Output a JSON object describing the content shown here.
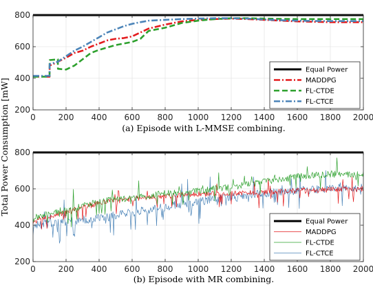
{
  "ylabel": "Total Power Consumption [mW]",
  "chart_data": [
    {
      "type": "line",
      "caption": "(a) Episode with L-MMSE combining.",
      "xlim": [
        0,
        2000
      ],
      "ylim": [
        200,
        800
      ],
      "xticks": [
        0,
        200,
        400,
        600,
        800,
        1000,
        1200,
        1400,
        1600,
        1800,
        2000
      ],
      "yticks": [
        200,
        400,
        600,
        800
      ],
      "grid": true,
      "legend_position": "bottom-right",
      "series": [
        {
          "name": "Equal Power",
          "color": "#000000",
          "style": "solid",
          "x": [
            0,
            2000
          ],
          "y": [
            800,
            800
          ]
        },
        {
          "name": "MADDPG",
          "color": "#e31a1c",
          "style": "dashdot",
          "x": [
            0,
            100,
            101,
            150,
            200,
            250,
            300,
            350,
            400,
            450,
            500,
            550,
            600,
            650,
            700,
            800,
            900,
            1000,
            1100,
            1200,
            1300,
            1400,
            1500,
            1600,
            1700,
            1800,
            1900,
            2000
          ],
          "y": [
            410,
            410,
            480,
            505,
            530,
            560,
            575,
            600,
            620,
            640,
            650,
            655,
            665,
            690,
            715,
            740,
            760,
            770,
            775,
            778,
            775,
            770,
            765,
            760,
            758,
            755,
            755,
            755
          ]
        },
        {
          "name": "FL-CTDE",
          "color": "#2ca02c",
          "style": "dashed",
          "x": [
            0,
            100,
            101,
            150,
            151,
            200,
            250,
            300,
            350,
            400,
            450,
            500,
            550,
            600,
            650,
            700,
            800,
            900,
            1000,
            1100,
            1200,
            1300,
            1400,
            1500,
            1600,
            1700,
            1800,
            1900,
            2000
          ],
          "y": [
            410,
            410,
            515,
            520,
            460,
            455,
            480,
            520,
            560,
            580,
            595,
            610,
            620,
            630,
            650,
            700,
            720,
            750,
            765,
            775,
            780,
            780,
            778,
            776,
            775,
            775,
            775,
            775,
            775
          ]
        },
        {
          "name": "FL-CTCE",
          "color": "#4b84b8",
          "style": "dashdot",
          "x": [
            0,
            100,
            101,
            150,
            200,
            250,
            300,
            350,
            400,
            450,
            500,
            550,
            600,
            650,
            700,
            800,
            900,
            1000,
            1100,
            1200,
            1300,
            1400,
            1500,
            1600,
            1700,
            1800,
            1900,
            2000
          ],
          "y": [
            415,
            415,
            490,
            505,
            540,
            575,
            600,
            630,
            660,
            690,
            710,
            730,
            745,
            755,
            765,
            770,
            775,
            778,
            780,
            780,
            778,
            772,
            768,
            765,
            763,
            762,
            762,
            762
          ]
        }
      ]
    },
    {
      "type": "line",
      "caption": "(b) Episode with MR combining.",
      "xlim": [
        0,
        2000
      ],
      "ylim": [
        200,
        800
      ],
      "xticks": [
        0,
        200,
        400,
        600,
        800,
        1000,
        1200,
        1400,
        1600,
        1800,
        2000
      ],
      "yticks": [
        200,
        400,
        600,
        800
      ],
      "grid": true,
      "legend_position": "bottom-right",
      "series": [
        {
          "name": "Equal Power",
          "color": "#000000",
          "style": "solid",
          "x": [
            0,
            2000
          ],
          "y": [
            800,
            800
          ]
        },
        {
          "name": "MADDPG",
          "color": "#e31a1c",
          "style": "solid",
          "x": [
            0,
            200,
            400,
            600,
            800,
            1000,
            1200,
            1400,
            1600,
            1800,
            2000
          ],
          "y": [
            420,
            470,
            520,
            545,
            560,
            570,
            575,
            580,
            590,
            595,
            600
          ]
        },
        {
          "name": "FL-CTDE",
          "color": "#2ca02c",
          "style": "solid",
          "x": [
            0,
            200,
            400,
            600,
            800,
            1000,
            1200,
            1400,
            1600,
            1800,
            2000
          ],
          "y": [
            440,
            480,
            530,
            550,
            575,
            590,
            610,
            640,
            670,
            680,
            680
          ]
        },
        {
          "name": "FL-CTCE",
          "color": "#4b84b8",
          "style": "solid",
          "x": [
            0,
            200,
            400,
            600,
            800,
            1000,
            1200,
            1400,
            1600,
            1800,
            2000
          ],
          "y": [
            400,
            420,
            440,
            470,
            500,
            530,
            555,
            575,
            590,
            600,
            610
          ]
        }
      ]
    }
  ]
}
